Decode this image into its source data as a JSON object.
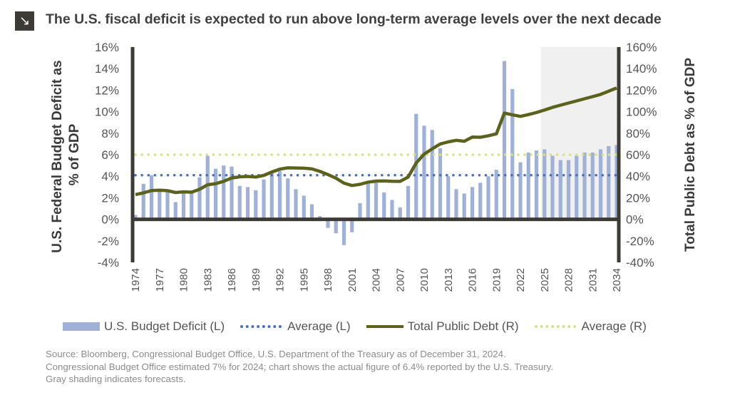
{
  "title": "The U.S. fiscal deficit is expected to run above long-term average levels over the next decade",
  "title_icon": "arrow-down-right-icon",
  "source_lines": [
    "Source: Bloomberg, Congressional Budget Office, U.S. Department of the Treasury as of December 31, 2024.",
    "Congressional Budget Office estimated 7% for 2024; chart shows the actual figure of 6.4% reported by the U.S. Treasury.",
    "Gray shading indicates forecasts."
  ],
  "legend": [
    {
      "label": "U.S. Budget Deficit (L)",
      "type": "bar"
    },
    {
      "label": "Average (L)",
      "type": "dotted"
    },
    {
      "label": "Total Public Debt (R)",
      "type": "line"
    },
    {
      "label": "Average (R)",
      "type": "dotted"
    }
  ],
  "colors": {
    "bars": "#9fb1d8",
    "avg_left": "#4a6fbd",
    "debt_line": "#5c621c",
    "avg_right": "#d6e08a",
    "axis": "#3d3b36",
    "forecast_shade": "#eff0ef"
  },
  "chart_data": {
    "type": "bar+line",
    "ylabel_left": "U.S. Federal Budget Deficit as % of GDP",
    "ylabel_right": "Total Public Debt as % of GDP",
    "ylim_left": [
      -4,
      16
    ],
    "ylim_right": [
      -40,
      160
    ],
    "yticks_left": [
      "-4%",
      "-2%",
      "0%",
      "2%",
      "4%",
      "6%",
      "8%",
      "10%",
      "12%",
      "14%",
      "16%"
    ],
    "yticks_right": [
      "-40%",
      "-20%",
      "0%",
      "20%",
      "40%",
      "60%",
      "80%",
      "100%",
      "120%",
      "140%",
      "160%"
    ],
    "xtick_labels": [
      "1974",
      "1977",
      "1980",
      "1983",
      "1986",
      "1989",
      "1992",
      "1995",
      "1998",
      "2001",
      "2004",
      "2007",
      "2010",
      "2013",
      "2016",
      "2019",
      "2022",
      "2025",
      "2028",
      "2031",
      "2034"
    ],
    "forecast_start": 2025,
    "years": [
      1974,
      1975,
      1976,
      1977,
      1978,
      1979,
      1980,
      1981,
      1982,
      1983,
      1984,
      1985,
      1986,
      1987,
      1988,
      1989,
      1990,
      1991,
      1992,
      1993,
      1994,
      1995,
      1996,
      1997,
      1998,
      1999,
      2000,
      2001,
      2002,
      2003,
      2004,
      2005,
      2006,
      2007,
      2008,
      2009,
      2010,
      2011,
      2012,
      2013,
      2014,
      2015,
      2016,
      2017,
      2018,
      2019,
      2020,
      2021,
      2022,
      2023,
      2024,
      2025,
      2026,
      2027,
      2028,
      2029,
      2030,
      2031,
      2032,
      2033,
      2034
    ],
    "series": [
      {
        "name": "U.S. Budget Deficit (L)",
        "axis": "left",
        "type": "bar",
        "values": [
          0.4,
          3.3,
          4.1,
          2.6,
          2.6,
          1.6,
          2.6,
          2.5,
          3.9,
          5.9,
          4.7,
          5.0,
          4.9,
          3.1,
          3.0,
          2.7,
          3.7,
          4.4,
          4.5,
          3.8,
          2.8,
          2.2,
          1.4,
          0.3,
          -0.8,
          -1.3,
          -2.4,
          -1.2,
          1.5,
          3.3,
          3.4,
          2.5,
          1.8,
          1.1,
          3.1,
          9.8,
          8.7,
          8.3,
          6.6,
          4.0,
          2.8,
          2.4,
          3.0,
          3.4,
          4.0,
          4.6,
          14.7,
          12.1,
          5.3,
          6.2,
          6.4,
          6.5,
          5.9,
          5.5,
          5.5,
          5.9,
          6.2,
          6.2,
          6.5,
          6.8,
          6.9
        ]
      },
      {
        "name": "Average (L)",
        "axis": "left",
        "type": "hline",
        "value": 4.1
      },
      {
        "name": "Total Public Debt (R)",
        "axis": "right",
        "type": "line",
        "values": [
          23,
          24.6,
          26.7,
          27.1,
          26.6,
          24.9,
          25.5,
          25.2,
          27.9,
          32.1,
          33.1,
          35.3,
          38.4,
          39.5,
          39.8,
          39.3,
          40.8,
          44,
          46.6,
          47.8,
          47.7,
          47.5,
          46.8,
          44.5,
          41.6,
          38.2,
          33.6,
          31.4,
          32.5,
          34.5,
          35.5,
          35.6,
          35.3,
          35.2,
          39.2,
          52.3,
          60.6,
          65.5,
          70,
          71.9,
          73.4,
          72.5,
          76.4,
          76.2,
          77.6,
          79.4,
          98.7,
          97,
          95.6,
          97.3,
          99.2,
          101.5,
          104,
          106,
          108,
          110,
          112,
          114,
          116,
          119,
          122
        ]
      },
      {
        "name": "Average (R)",
        "axis": "right",
        "type": "hline",
        "value": 60
      }
    ]
  }
}
